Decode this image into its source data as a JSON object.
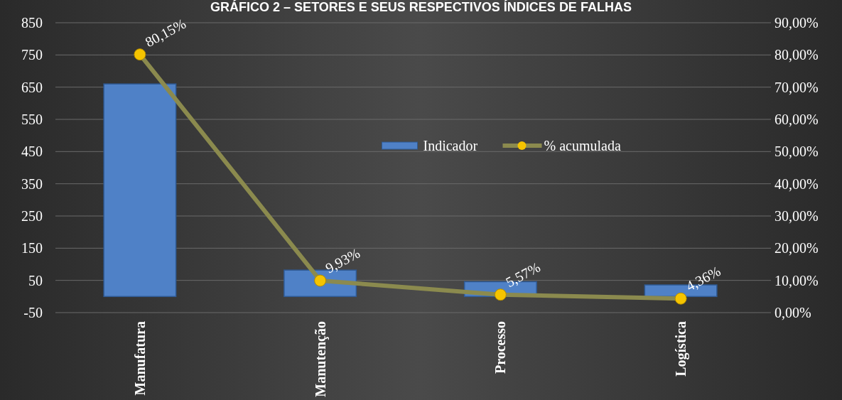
{
  "chart_data": {
    "type": "bar",
    "title": "GRÁFICO 2 – SETORES E SEUS RESPECTIVOS ÍNDICES DE FALHAS",
    "categories": [
      "Manufatura",
      "Manutenção",
      "Processo",
      "Logística"
    ],
    "series": [
      {
        "name": "Indicador",
        "color": "#4f81c7",
        "values": [
          660,
          82,
          46,
          36
        ]
      },
      {
        "name": "% acumulada",
        "type": "line",
        "axis": "y2",
        "color": "#8b8a4e",
        "values": [
          80.15,
          9.93,
          5.57,
          4.36
        ],
        "value_labels": [
          "80,15%",
          "9,93%",
          "5,57%",
          "4,36%"
        ],
        "marker": "circle"
      }
    ],
    "ylim": [
      -50,
      850
    ],
    "yticks": [
      -50,
      50,
      150,
      250,
      350,
      450,
      550,
      650,
      750,
      850
    ],
    "y2lim": [
      0,
      90
    ],
    "y2ticks": [
      {
        "value": 0,
        "label": "0,00%"
      },
      {
        "value": 10,
        "label": "10,00%"
      },
      {
        "value": 20,
        "label": "20,00%"
      },
      {
        "value": 30,
        "label": "30,00%"
      },
      {
        "value": 40,
        "label": "40,00%"
      },
      {
        "value": 50,
        "label": "50,00%"
      },
      {
        "value": 60,
        "label": "60,00%"
      },
      {
        "value": 70,
        "label": "70,00%"
      },
      {
        "value": 80,
        "label": "80,00%"
      },
      {
        "value": 90,
        "label": "90,00%"
      }
    ],
    "grid": "y",
    "legend": "center"
  }
}
